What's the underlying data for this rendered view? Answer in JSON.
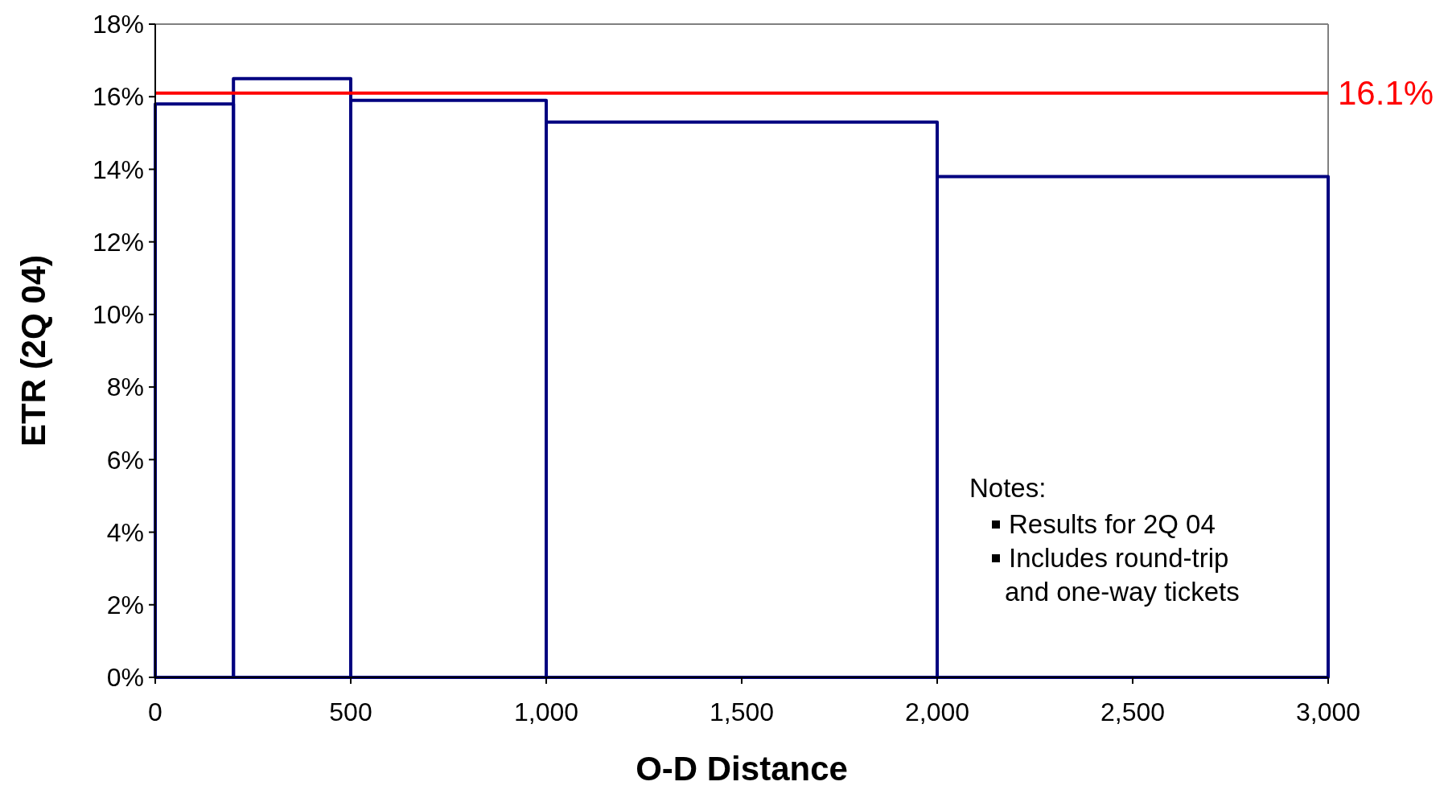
{
  "chart_data": {
    "type": "histogram",
    "xlabel": "O-D Distance",
    "ylabel": "ETR (2Q 04)",
    "bins": [
      0,
      200,
      500,
      1000,
      2000,
      3000
    ],
    "values": [
      15.8,
      16.5,
      15.9,
      15.3,
      13.8
    ],
    "color": "#000080",
    "xlim": [
      0,
      3000
    ],
    "xticks": [
      0,
      500,
      {
        "value": 1000,
        "label": "1,000"
      },
      {
        "value": 1500,
        "label": "1,500"
      },
      {
        "value": 2000,
        "label": "2,000"
      },
      {
        "value": 2500,
        "label": "2,500"
      },
      {
        "value": 3000,
        "label": "3,000"
      }
    ],
    "ylim": [
      0,
      18
    ],
    "yticks": [
      {
        "value": 0,
        "label": "0%"
      },
      {
        "value": 2,
        "label": "2%"
      },
      {
        "value": 4,
        "label": "4%"
      },
      {
        "value": 6,
        "label": "6%"
      },
      {
        "value": 8,
        "label": "8%"
      },
      {
        "value": 10,
        "label": "10%"
      },
      {
        "value": 12,
        "label": "12%"
      },
      {
        "value": 14,
        "label": "14%"
      },
      {
        "value": 16,
        "label": "16%"
      },
      {
        "value": 18,
        "label": "18%"
      }
    ],
    "ref_lines": [
      {
        "axis": "y",
        "value": 16.1,
        "label": "16.1%",
        "color": "#ff0000"
      }
    ],
    "annotations": [
      "Notes:",
      "Results for 2Q 04",
      "Includes round-trip\nand one-way tickets"
    ],
    "grid": false
  }
}
